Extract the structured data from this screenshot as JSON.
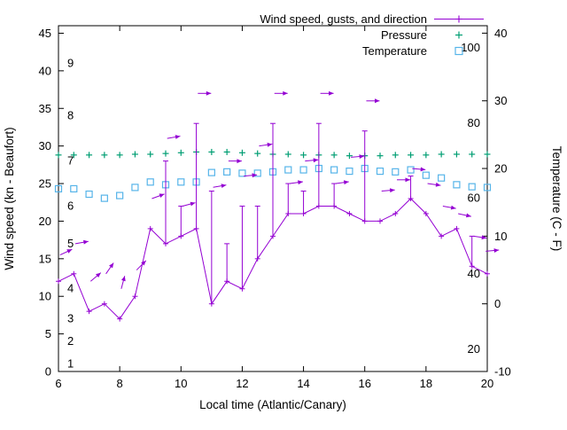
{
  "chart_data": {
    "type": "line",
    "title": "",
    "xlabel": "Local time (Atlantic/Canary)",
    "ylabel": "Wind speed (kn - Beaufort)",
    "y2label": "Temperature (C - F)",
    "xlim": [
      6,
      20
    ],
    "xticks": [
      6,
      8,
      10,
      12,
      14,
      16,
      18,
      20
    ],
    "ylim_left": [
      0,
      46
    ],
    "yticks_left": [
      0,
      5,
      10,
      15,
      20,
      25,
      30,
      35,
      40,
      45
    ],
    "ylim_right": [
      -10,
      41.1
    ],
    "yticks_right": [
      -10,
      0,
      10,
      20,
      30,
      40
    ],
    "grid": false,
    "legend_position": "top-right-inside",
    "colors": {
      "wind": "#9400D3",
      "pressure": "#009E73",
      "temperature": "#56B4E9",
      "axis": "#000000"
    },
    "legend": [
      {
        "label": "Wind speed, gusts, and direction",
        "color": "#9400D3",
        "marker": "line-plus"
      },
      {
        "label": "Pressure",
        "color": "#009E73",
        "marker": "plus"
      },
      {
        "label": "Temperature",
        "color": "#56B4E9",
        "marker": "square"
      }
    ],
    "beaufort_scale_labels": [
      {
        "label": "1",
        "kn": 1
      },
      {
        "label": "2",
        "kn": 4
      },
      {
        "label": "3",
        "kn": 7
      },
      {
        "label": "4",
        "kn": 11
      },
      {
        "label": "5",
        "kn": 17
      },
      {
        "label": "6",
        "kn": 22
      },
      {
        "label": "7",
        "kn": 28
      },
      {
        "label": "8",
        "kn": 34
      },
      {
        "label": "9",
        "kn": 41
      }
    ],
    "fahrenheit_scale_labels": [
      {
        "label": "100",
        "c": 37.8
      },
      {
        "label": "80",
        "c": 26.7
      },
      {
        "label": "60",
        "c": 15.6
      },
      {
        "label": "40",
        "c": 4.4
      },
      {
        "label": "20",
        "c": -6.7
      }
    ],
    "x": [
      6,
      6.5,
      7,
      7.5,
      8,
      8.5,
      9,
      9.5,
      10,
      10.5,
      11,
      11.5,
      12,
      12.5,
      13,
      13.5,
      14,
      14.5,
      15,
      15.5,
      16,
      16.5,
      17,
      17.5,
      18,
      18.5,
      19,
      19.5,
      20
    ],
    "series": [
      {
        "name": "Wind speed (kn)",
        "axis": "left",
        "style": "line-points",
        "marker": "plus",
        "values": [
          12,
          13,
          8,
          9,
          7,
          10,
          19,
          17,
          18,
          19,
          9,
          12,
          11,
          15,
          18,
          21,
          21,
          22,
          22,
          21,
          20,
          20,
          21,
          23,
          21,
          18,
          19,
          14,
          13
        ]
      },
      {
        "name": "Wind gusts (kn)",
        "axis": "left",
        "style": "errorbar-to-gust",
        "values": [
          null,
          null,
          null,
          null,
          null,
          null,
          null,
          28,
          22,
          33,
          24,
          17,
          22,
          22,
          33,
          25,
          24,
          33,
          25,
          null,
          32,
          null,
          null,
          26,
          null,
          null,
          null,
          18,
          null
        ]
      },
      {
        "name": "Pressure (plotted level, left-axis units)",
        "axis": "left",
        "style": "points",
        "marker": "plus",
        "values": [
          28.8,
          28.8,
          28.8,
          28.8,
          28.8,
          28.9,
          28.9,
          29.0,
          29.1,
          29.2,
          29.2,
          29.2,
          29.1,
          29.0,
          28.9,
          28.9,
          28.8,
          28.8,
          28.8,
          28.7,
          28.7,
          28.7,
          28.8,
          28.8,
          28.8,
          28.9,
          28.9,
          28.9,
          28.9
        ]
      },
      {
        "name": "Temperature (C)",
        "axis": "right",
        "style": "points",
        "marker": "open-square",
        "values": [
          17,
          17,
          16.2,
          15.6,
          16,
          17.2,
          18,
          17.6,
          18,
          18,
          19.4,
          19.5,
          19.3,
          19.3,
          19.5,
          19.8,
          19.8,
          20,
          19.8,
          19.6,
          20,
          19.6,
          19.5,
          19.8,
          19,
          18.6,
          17.6,
          17.3,
          17.2
        ]
      }
    ],
    "wind_direction_arrows": [
      {
        "t": 6.05,
        "kn": 15.5,
        "angle_deg": 25
      },
      {
        "t": 6.55,
        "kn": 17,
        "angle_deg": 10
      },
      {
        "t": 7.05,
        "kn": 12,
        "angle_deg": 40
      },
      {
        "t": 7.55,
        "kn": 13,
        "angle_deg": 55
      },
      {
        "t": 8.05,
        "kn": 11,
        "angle_deg": 75
      },
      {
        "t": 8.55,
        "kn": 13.5,
        "angle_deg": 45
      },
      {
        "t": 9.05,
        "kn": 23,
        "angle_deg": 20
      },
      {
        "t": 9.55,
        "kn": 31,
        "angle_deg": 10
      },
      {
        "t": 10.05,
        "kn": 22,
        "angle_deg": 15
      },
      {
        "t": 10.55,
        "kn": 37,
        "angle_deg": 0
      },
      {
        "t": 11.05,
        "kn": 24.5,
        "angle_deg": 10
      },
      {
        "t": 11.55,
        "kn": 28,
        "angle_deg": 0
      },
      {
        "t": 12.05,
        "kn": 26,
        "angle_deg": 5
      },
      {
        "t": 12.55,
        "kn": 30,
        "angle_deg": 8
      },
      {
        "t": 13.05,
        "kn": 37,
        "angle_deg": 0
      },
      {
        "t": 13.55,
        "kn": 25,
        "angle_deg": 8
      },
      {
        "t": 14.05,
        "kn": 28,
        "angle_deg": 5
      },
      {
        "t": 14.55,
        "kn": 37,
        "angle_deg": 0
      },
      {
        "t": 15.05,
        "kn": 25,
        "angle_deg": 8
      },
      {
        "t": 15.55,
        "kn": 28.5,
        "angle_deg": 5
      },
      {
        "t": 16.05,
        "kn": 36,
        "angle_deg": 0
      },
      {
        "t": 16.55,
        "kn": 24,
        "angle_deg": 5
      },
      {
        "t": 17.05,
        "kn": 25.5,
        "angle_deg": 0
      },
      {
        "t": 17.55,
        "kn": 27,
        "angle_deg": -5
      },
      {
        "t": 18.05,
        "kn": 25,
        "angle_deg": -8
      },
      {
        "t": 18.55,
        "kn": 22,
        "angle_deg": -10
      },
      {
        "t": 19.05,
        "kn": 21,
        "angle_deg": -12
      },
      {
        "t": 19.55,
        "kn": 18,
        "angle_deg": -8
      },
      {
        "t": 19.95,
        "kn": 16,
        "angle_deg": 5
      }
    ]
  }
}
